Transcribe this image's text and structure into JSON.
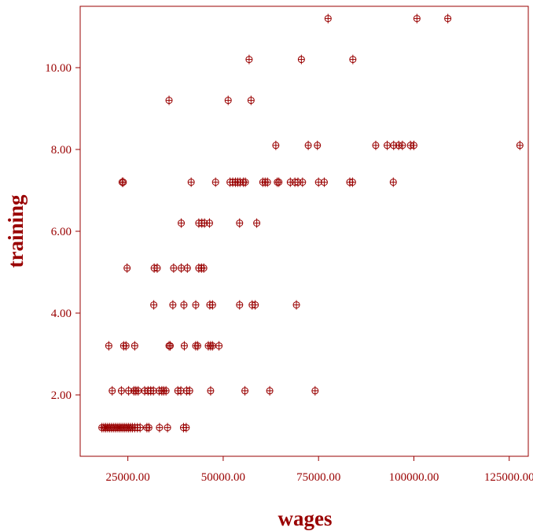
{
  "chart_data": {
    "type": "scatter",
    "title": "",
    "xlabel": "wages",
    "ylabel": "training",
    "xlim": [
      12500,
      130000
    ],
    "ylim": [
      0.5,
      11.5
    ],
    "xticks": [
      25000,
      50000,
      75000,
      100000,
      125000
    ],
    "xtick_labels": [
      "25000.00",
      "50000.00",
      "75000.00",
      "100000.00",
      "125000.00"
    ],
    "yticks": [
      2,
      4,
      6,
      8,
      10
    ],
    "ytick_labels": [
      "2.00",
      "4.00",
      "6.00",
      "8.00",
      "10.00"
    ],
    "grid": false,
    "color": "#990000",
    "marker": "circle-plus",
    "points": [
      [
        77500,
        11.2
      ],
      [
        100800,
        11.2
      ],
      [
        108900,
        11.2
      ],
      [
        56800,
        10.2
      ],
      [
        70500,
        10.2
      ],
      [
        84000,
        10.2
      ],
      [
        35800,
        9.2
      ],
      [
        51300,
        9.2
      ],
      [
        57300,
        9.2
      ],
      [
        63800,
        8.1
      ],
      [
        72300,
        8.1
      ],
      [
        74700,
        8.1
      ],
      [
        90000,
        8.1
      ],
      [
        93000,
        8.1
      ],
      [
        94700,
        8.1
      ],
      [
        96000,
        8.1
      ],
      [
        97000,
        8.1
      ],
      [
        99100,
        8.1
      ],
      [
        100000,
        8.1
      ],
      [
        127800,
        8.1
      ],
      [
        23500,
        7.2
      ],
      [
        23800,
        7.2
      ],
      [
        41600,
        7.2
      ],
      [
        48000,
        7.2
      ],
      [
        51800,
        7.2
      ],
      [
        52500,
        7.2
      ],
      [
        53200,
        7.2
      ],
      [
        53800,
        7.2
      ],
      [
        54400,
        7.2
      ],
      [
        55300,
        7.2
      ],
      [
        55800,
        7.2
      ],
      [
        60400,
        7.2
      ],
      [
        61000,
        7.2
      ],
      [
        61600,
        7.2
      ],
      [
        64200,
        7.2
      ],
      [
        64600,
        7.2
      ],
      [
        67600,
        7.2
      ],
      [
        68800,
        7.2
      ],
      [
        69600,
        7.2
      ],
      [
        70800,
        7.2
      ],
      [
        75000,
        7.2
      ],
      [
        76500,
        7.2
      ],
      [
        83200,
        7.2
      ],
      [
        83900,
        7.2
      ],
      [
        94600,
        7.2
      ],
      [
        39000,
        6.2
      ],
      [
        43600,
        6.2
      ],
      [
        44400,
        6.2
      ],
      [
        45100,
        6.2
      ],
      [
        46400,
        6.2
      ],
      [
        54300,
        6.2
      ],
      [
        58800,
        6.2
      ],
      [
        24800,
        5.1
      ],
      [
        31900,
        5.1
      ],
      [
        32700,
        5.1
      ],
      [
        37000,
        5.1
      ],
      [
        39000,
        5.1
      ],
      [
        40600,
        5.1
      ],
      [
        43600,
        5.1
      ],
      [
        44300,
        5.1
      ],
      [
        44900,
        5.1
      ],
      [
        31800,
        4.2
      ],
      [
        36800,
        4.2
      ],
      [
        39700,
        4.2
      ],
      [
        42800,
        4.2
      ],
      [
        46500,
        4.2
      ],
      [
        47200,
        4.2
      ],
      [
        54300,
        4.2
      ],
      [
        57600,
        4.2
      ],
      [
        58400,
        4.2
      ],
      [
        69200,
        4.2
      ],
      [
        20000,
        3.2
      ],
      [
        23900,
        3.2
      ],
      [
        24500,
        3.2
      ],
      [
        26800,
        3.2
      ],
      [
        35800,
        3.2
      ],
      [
        36100,
        3.2
      ],
      [
        39800,
        3.2
      ],
      [
        42800,
        3.2
      ],
      [
        43300,
        3.2
      ],
      [
        46100,
        3.2
      ],
      [
        46700,
        3.2
      ],
      [
        47200,
        3.2
      ],
      [
        48900,
        3.2
      ],
      [
        20900,
        2.1
      ],
      [
        23300,
        2.1
      ],
      [
        25200,
        2.1
      ],
      [
        26600,
        2.1
      ],
      [
        27100,
        2.1
      ],
      [
        27700,
        2.1
      ],
      [
        29400,
        2.1
      ],
      [
        30300,
        2.1
      ],
      [
        31000,
        2.1
      ],
      [
        31700,
        2.1
      ],
      [
        33200,
        2.1
      ],
      [
        33900,
        2.1
      ],
      [
        34400,
        2.1
      ],
      [
        35000,
        2.1
      ],
      [
        38100,
        2.1
      ],
      [
        38900,
        2.1
      ],
      [
        40400,
        2.1
      ],
      [
        41200,
        2.1
      ],
      [
        46700,
        2.1
      ],
      [
        55700,
        2.1
      ],
      [
        62200,
        2.1
      ],
      [
        74100,
        2.1
      ],
      [
        18200,
        1.2
      ],
      [
        18700,
        1.2
      ],
      [
        19200,
        1.2
      ],
      [
        19700,
        1.2
      ],
      [
        20200,
        1.2
      ],
      [
        20700,
        1.2
      ],
      [
        21200,
        1.2
      ],
      [
        21700,
        1.2
      ],
      [
        22200,
        1.2
      ],
      [
        22700,
        1.2
      ],
      [
        23200,
        1.2
      ],
      [
        23700,
        1.2
      ],
      [
        24200,
        1.2
      ],
      [
        24700,
        1.2
      ],
      [
        25200,
        1.2
      ],
      [
        25700,
        1.2
      ],
      [
        26200,
        1.2
      ],
      [
        26800,
        1.2
      ],
      [
        27500,
        1.2
      ],
      [
        28200,
        1.2
      ],
      [
        30000,
        1.2
      ],
      [
        30500,
        1.2
      ],
      [
        33300,
        1.2
      ],
      [
        35400,
        1.2
      ],
      [
        39600,
        1.2
      ],
      [
        40300,
        1.2
      ]
    ]
  }
}
